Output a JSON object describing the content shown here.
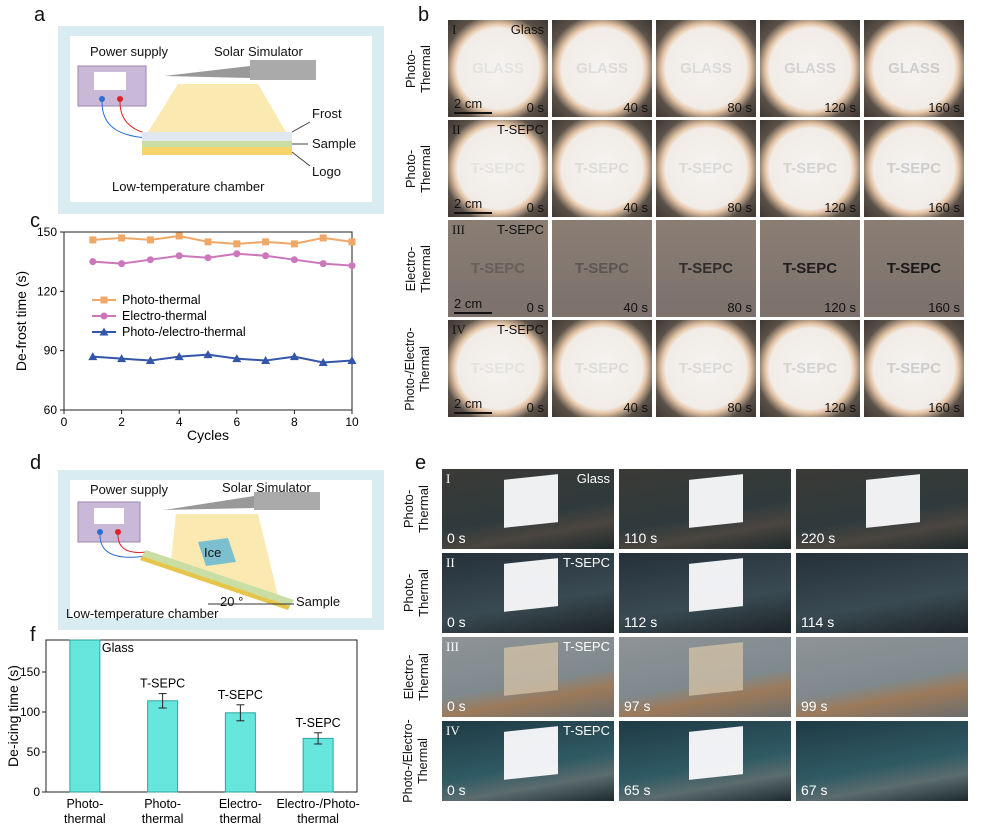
{
  "panels": {
    "a": "a",
    "b": "b",
    "c": "c",
    "d": "d",
    "e": "e",
    "f": "f"
  },
  "schematic_a": {
    "power_supply": "Power supply",
    "solar_simulator": "Solar Simulator",
    "frost": "Frost",
    "sample": "Sample",
    "logo": "Logo",
    "chamber": "Low-temperature chamber"
  },
  "schematic_d": {
    "power_supply": "Power supply",
    "solar_simulator": "Solar Simulator",
    "ice": "Ice",
    "angle": "20 °",
    "sample": "Sample",
    "chamber": "Low-temperature chamber"
  },
  "panel_b": {
    "rows": [
      {
        "roman": "I",
        "sample": "Glass",
        "label": "Photo-\nThermal",
        "logo": "GLASS",
        "scale": "2 cm",
        "times": [
          "0 s",
          "40 s",
          "80 s",
          "120 s",
          "160 s"
        ]
      },
      {
        "roman": "II",
        "sample": "T-SEPC",
        "label": "Photo-\nThermal",
        "logo": "T-SEPC",
        "scale": "2 cm",
        "times": [
          "0 s",
          "40 s",
          "80 s",
          "120 s",
          "160 s"
        ]
      },
      {
        "roman": "III",
        "sample": "T-SEPC",
        "label": "Electro-\nThermal",
        "logo": "T-SEPC",
        "scale": "2 cm",
        "times": [
          "0 s",
          "40 s",
          "80 s",
          "120 s",
          "160 s"
        ]
      },
      {
        "roman": "IV",
        "sample": "T-SEPC",
        "label": "Photo-/Electro-\nThermal",
        "logo": "T-SEPC",
        "scale": "2 cm",
        "times": [
          "0 s",
          "40 s",
          "80 s",
          "120 s",
          "160 s"
        ]
      }
    ]
  },
  "panel_e": {
    "rows": [
      {
        "roman": "I",
        "sample": "Glass",
        "label": "Photo-\nThermal",
        "times": [
          "0 s",
          "110 s",
          "220 s"
        ]
      },
      {
        "roman": "II",
        "sample": "T-SEPC",
        "label": "Photo-\nThermal",
        "times": [
          "0 s",
          "112 s",
          "114 s"
        ]
      },
      {
        "roman": "III",
        "sample": "T-SEPC",
        "label": "Electro-\nThermal",
        "times": [
          "0 s",
          "97 s",
          "99 s"
        ]
      },
      {
        "roman": "IV",
        "sample": "T-SEPC",
        "label": "Photo-/Electro-\nThermal",
        "times": [
          "0 s",
          "65 s",
          "67 s"
        ]
      }
    ]
  },
  "chart_data": [
    {
      "type": "line",
      "xlabel": "Cycles",
      "ylabel": "De-frost time (s)",
      "xlim": [
        0,
        10
      ],
      "ylim": [
        60,
        150
      ],
      "xticks": [
        0,
        2,
        4,
        6,
        8,
        10
      ],
      "yticks": [
        60,
        90,
        120,
        150
      ],
      "legend": "left",
      "x": [
        1,
        2,
        3,
        4,
        5,
        6,
        7,
        8,
        9,
        10
      ],
      "series": [
        {
          "name": "Photo-thermal",
          "color": "#f0a868",
          "marker": "square",
          "values": [
            146,
            147,
            146,
            148,
            145,
            144,
            145,
            144,
            147,
            145
          ]
        },
        {
          "name": "Electro-thermal",
          "color": "#cc77bb",
          "marker": "circle",
          "values": [
            135,
            134,
            136,
            138,
            137,
            139,
            138,
            136,
            134,
            133
          ]
        },
        {
          "name": "Photo-/electro-thermal",
          "color": "#3355aa",
          "marker": "triangle",
          "values": [
            87,
            86,
            85,
            87,
            88,
            86,
            85,
            87,
            84,
            85
          ]
        }
      ]
    },
    {
      "type": "bar",
      "ylabel": "De-icing time (s)",
      "ylim": [
        0,
        190
      ],
      "yticks": [
        0,
        50,
        100,
        150
      ],
      "categories": [
        "Photo-\nthermal",
        "Photo-\nthermal",
        "Electro-\nthermal",
        "Electro-/Photo-\nthermal"
      ],
      "values": [
        190,
        114,
        99,
        67
      ],
      "errors": [
        0,
        9,
        10,
        7
      ],
      "bar_labels": [
        "Glass",
        "T-SEPC",
        "T-SEPC",
        "T-SEPC"
      ],
      "color": "#66e6dd"
    }
  ]
}
